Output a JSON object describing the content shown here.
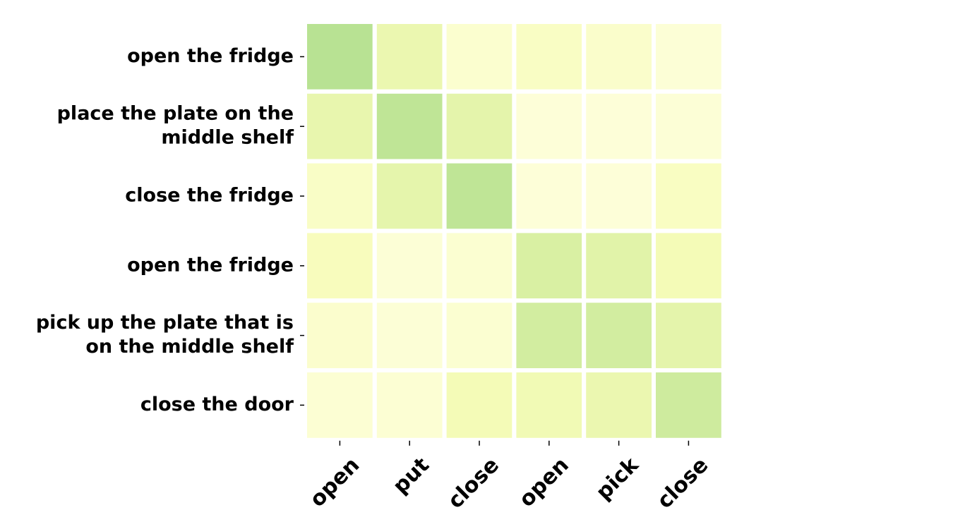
{
  "chart_data": {
    "type": "heatmap",
    "title": "",
    "xlabel": "",
    "ylabel": "",
    "rows": [
      "open the fridge",
      "place the plate on the middle shelf",
      "close the fridge",
      "open the fridge",
      "pick up the plate that is on the middle shelf",
      "close the door"
    ],
    "row_label_lines": [
      [
        "open the fridge"
      ],
      [
        "place the plate on the",
        "middle shelf"
      ],
      [
        "close the fridge"
      ],
      [
        "open the fridge"
      ],
      [
        "pick up the plate that is",
        "on the middle shelf"
      ],
      [
        "close the door"
      ]
    ],
    "columns": [
      "open",
      "put",
      "close",
      "open",
      "pick",
      "close"
    ],
    "values": [
      [
        0.55,
        0.28,
        0.1,
        0.15,
        0.12,
        0.07
      ],
      [
        0.3,
        0.52,
        0.33,
        0.06,
        0.06,
        0.07
      ],
      [
        0.14,
        0.32,
        0.52,
        0.06,
        0.06,
        0.16
      ],
      [
        0.18,
        0.07,
        0.09,
        0.4,
        0.35,
        0.22
      ],
      [
        0.11,
        0.07,
        0.09,
        0.43,
        0.43,
        0.33
      ],
      [
        0.08,
        0.08,
        0.22,
        0.24,
        0.28,
        0.45
      ]
    ],
    "colormap": [
      "#ffffe5",
      "#f7fcb9",
      "#d9f0a3",
      "#addd8e",
      "#78c679"
    ],
    "value_range": [
      0,
      0.8
    ],
    "colorbar": false,
    "grid": false
  }
}
